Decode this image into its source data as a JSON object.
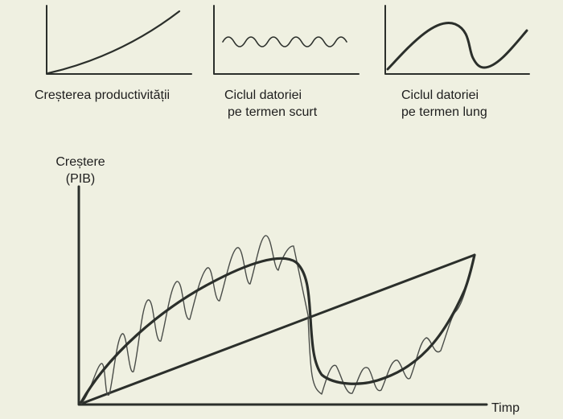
{
  "panels": [
    {
      "id": "productivity",
      "lines": [
        "Creșterea productivității"
      ]
    },
    {
      "id": "short-debt-cycle",
      "lines": [
        "Ciclul datoriei",
        "pe termen scurt"
      ]
    },
    {
      "id": "long-debt-cycle",
      "lines": [
        "Ciclul datoriei",
        "pe termen lung"
      ]
    }
  ],
  "main": {
    "y_axis_label": [
      "Creștere",
      "(PIB)"
    ],
    "x_axis_label": "Timp"
  },
  "colors": {
    "background": "#eff0e1",
    "ink": "#2b2f2b",
    "thin_ink": "#4a4d49"
  }
}
